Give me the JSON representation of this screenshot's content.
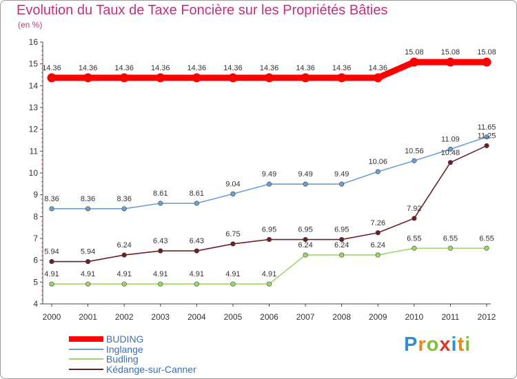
{
  "header": {
    "title": "Evolution du Taux de Taxe Foncière sur les Propriétés Bâties",
    "subtitle": "(en %)"
  },
  "logo": {
    "text": "Proxiti",
    "letters": [
      "P",
      "r",
      "o",
      "x",
      "i",
      "t",
      "i"
    ],
    "colors": [
      "#2f8fd6",
      "#e8891c",
      "#7dbf3a",
      "#d83a2a",
      "#2f8fd6",
      "#e8891c",
      "#7dbf3a"
    ]
  },
  "chart_data": {
    "type": "line",
    "x": [
      "2000",
      "2001",
      "2002",
      "2003",
      "2004",
      "2005",
      "2006",
      "2007",
      "2008",
      "2009",
      "2010",
      "2011",
      "2012"
    ],
    "ylim": [
      4,
      16
    ],
    "yticks": [
      "4",
      "5",
      "6",
      "7",
      "8",
      "9",
      "10",
      "11",
      "12",
      "13",
      "14",
      "15",
      "16"
    ],
    "grid": false,
    "legend_position": "bottom-left",
    "series": [
      {
        "name": "BUDING",
        "color": "#ff0000",
        "values": [
          14.36,
          14.36,
          14.36,
          14.36,
          14.36,
          14.36,
          14.36,
          14.36,
          14.36,
          14.36,
          15.08,
          15.08,
          15.08
        ],
        "labels": [
          "14.36",
          "14.36",
          "14.36",
          "14.36",
          "14.36",
          "14.36",
          "14.36",
          "14.36",
          "14.36",
          "14.36",
          "15.08",
          "15.08",
          "15.08"
        ]
      },
      {
        "name": "Inglange",
        "color": "#6a9fd0",
        "values": [
          8.36,
          8.36,
          8.36,
          8.61,
          8.61,
          9.04,
          9.49,
          9.49,
          9.49,
          10.06,
          10.56,
          11.09,
          11.65
        ],
        "labels": [
          "8.36",
          "8.36",
          "8.36",
          "8.61",
          "8.61",
          "9.04",
          "9.49",
          "9.49",
          "9.49",
          "10.06",
          "10.56",
          "11.09",
          "11.65"
        ]
      },
      {
        "name": "Budling",
        "color": "#9ed46a",
        "values": [
          4.91,
          4.91,
          4.91,
          4.91,
          4.91,
          4.91,
          4.91,
          6.24,
          6.24,
          6.24,
          6.55,
          6.55,
          6.55
        ],
        "labels": [
          "4.91",
          "4.91",
          "4.91",
          "4.91",
          "4.91",
          "4.91",
          "4.91",
          "6.24",
          "6.24",
          "6.24",
          "6.55",
          "6.55",
          "6.55"
        ]
      },
      {
        "name": "Kédange-sur-Canner",
        "color": "#6b1f24",
        "values": [
          5.94,
          5.94,
          6.24,
          6.43,
          6.43,
          6.75,
          6.95,
          6.95,
          6.95,
          7.26,
          7.92,
          10.48,
          11.25
        ],
        "labels": [
          "5.94",
          "5.94",
          "6.24",
          "6.43",
          "6.43",
          "6.75",
          "6.95",
          "6.95",
          "6.95",
          "7.26",
          "7.92",
          "10.48",
          "11.25"
        ]
      }
    ]
  }
}
